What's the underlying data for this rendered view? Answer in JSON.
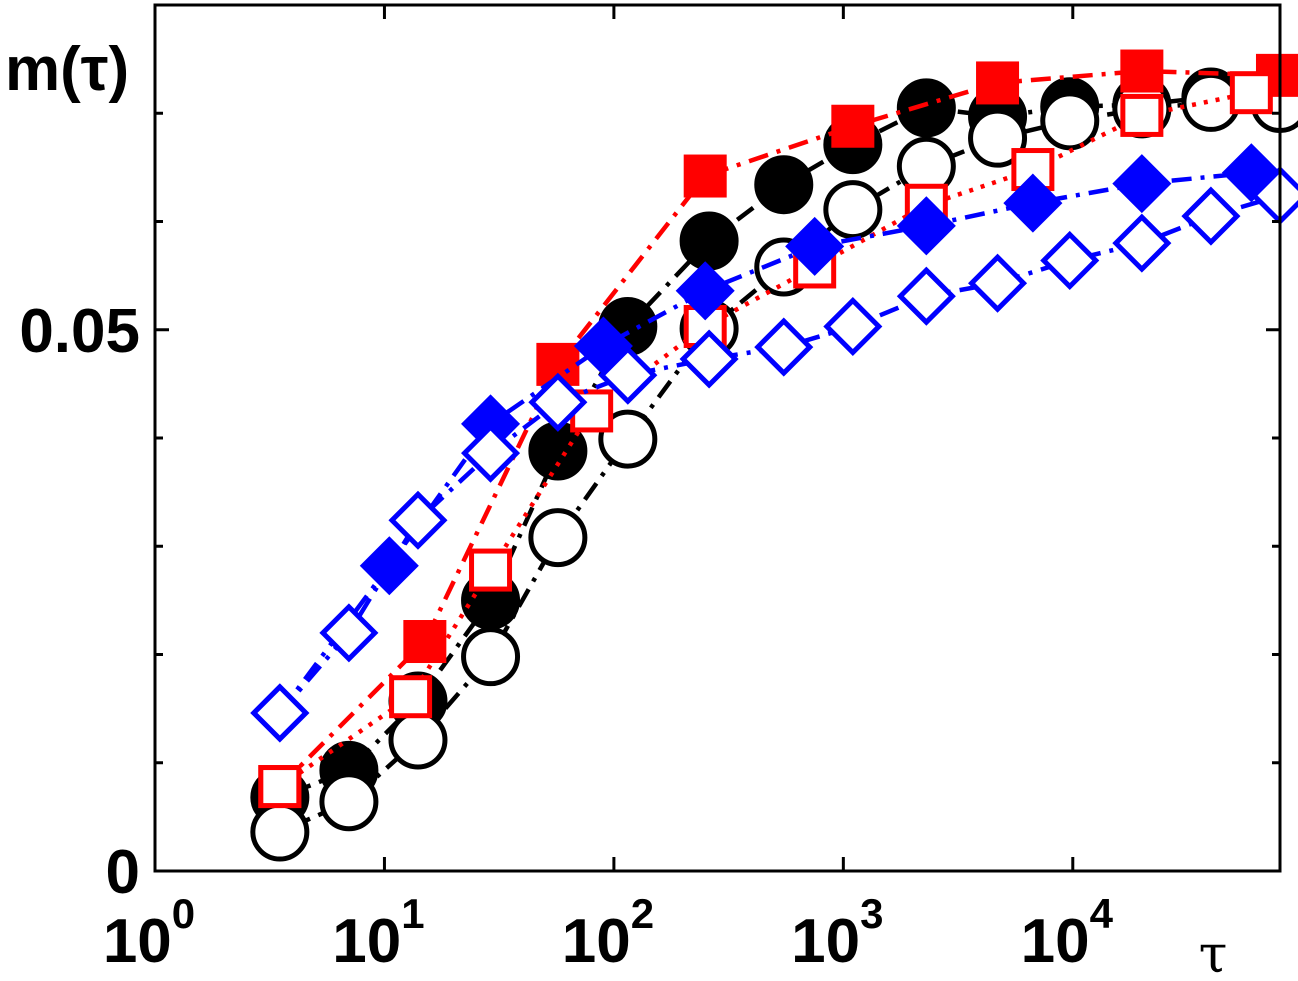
{
  "chart_data": {
    "type": "scatter",
    "xscale": "log",
    "xlim": [
      1,
      80000
    ],
    "ylim": [
      0,
      0.08
    ],
    "title": "",
    "xlabel": "τ",
    "ylabel": "m(τ)",
    "grid": false,
    "legend": "none",
    "x_ticks": [
      1,
      10,
      100,
      1000,
      10000
    ],
    "x_tick_labels": [
      {
        "base": "10",
        "exp": "0"
      },
      {
        "base": "10",
        "exp": "1"
      },
      {
        "base": "10",
        "exp": "2"
      },
      {
        "base": "10",
        "exp": "3"
      },
      {
        "base": "10",
        "exp": "4"
      }
    ],
    "y_ticks": [
      0,
      0.05
    ],
    "y_tick_labels": [
      "0",
      "0.05"
    ],
    "y_minor_ticks": [
      0.01,
      0.02,
      0.03,
      0.04,
      0.06,
      0.07
    ],
    "series": [
      {
        "marker": "circle",
        "filled": true,
        "color": "#000000",
        "line": "dashdot",
        "x": [
          3.5,
          7,
          14,
          29,
          57,
          115,
          260,
          550,
          1100,
          2300,
          4700,
          9700,
          20000,
          40000,
          80000
        ],
        "y": [
          0.0068,
          0.0093,
          0.0157,
          0.025,
          0.0388,
          0.0503,
          0.0582,
          0.0634,
          0.0671,
          0.0705,
          0.0697,
          0.0706,
          0.0708,
          0.0715,
          0.0713
        ]
      },
      {
        "marker": "circle",
        "filled": false,
        "color": "#000000",
        "line": "dashdot",
        "x": [
          3.5,
          7,
          14,
          29,
          57,
          115,
          260,
          550,
          1100,
          2300,
          4700,
          9700,
          20000,
          40000,
          80000
        ],
        "y": [
          0.0036,
          0.0064,
          0.0121,
          0.0198,
          0.0308,
          0.0399,
          0.0501,
          0.0558,
          0.0611,
          0.0651,
          0.0677,
          0.0693,
          0.0704,
          0.071,
          0.0709
        ]
      },
      {
        "marker": "square",
        "filled": true,
        "color": "#ff0000",
        "line": "dashdot",
        "x": [
          3.5,
          15,
          57,
          250,
          1100,
          4700,
          20000,
          78000
        ],
        "y": [
          0.0078,
          0.0212,
          0.0468,
          0.0642,
          0.0688,
          0.0728,
          0.0739,
          0.0735
        ]
      },
      {
        "marker": "square",
        "filled": false,
        "color": "#ff0000",
        "line": "dotted",
        "x": [
          3.5,
          13,
          29,
          80,
          250,
          750,
          2300,
          6700,
          20000,
          60000
        ],
        "y": [
          0.0078,
          0.0161,
          0.0278,
          0.0425,
          0.0503,
          0.0558,
          0.0615,
          0.0648,
          0.0698,
          0.0719
        ]
      },
      {
        "marker": "diamond",
        "filled": true,
        "color": "#0000ff",
        "line": "dashdot",
        "x": [
          3.5,
          10.5,
          29,
          90,
          250,
          750,
          2300,
          6700,
          20000,
          60000
        ],
        "y": [
          0.0146,
          0.0282,
          0.0413,
          0.0485,
          0.0536,
          0.0577,
          0.0596,
          0.0617,
          0.0635,
          0.0645
        ]
      },
      {
        "marker": "diamond",
        "filled": false,
        "color": "#0000ff",
        "line": "dashdot",
        "x": [
          3.5,
          7,
          14,
          29,
          57,
          115,
          260,
          550,
          1100,
          2300,
          4700,
          9700,
          20000,
          40000,
          80000
        ],
        "y": [
          0.0146,
          0.022,
          0.0324,
          0.0386,
          0.0433,
          0.0458,
          0.0473,
          0.0484,
          0.0503,
          0.0531,
          0.0543,
          0.0564,
          0.058,
          0.0605,
          0.0624
        ]
      }
    ]
  }
}
